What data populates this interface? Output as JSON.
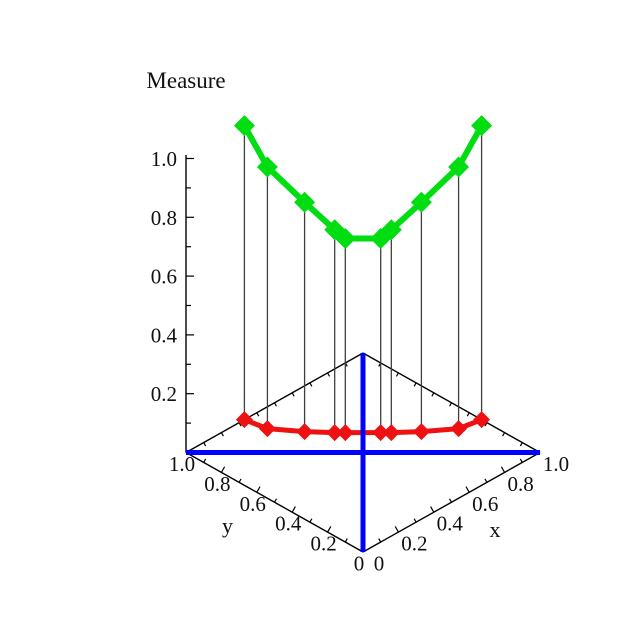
{
  "chart_data": {
    "type": "line3d",
    "zlabel": "Measure",
    "axes": {
      "x": {
        "label": "x",
        "range": [
          0,
          1
        ],
        "tick_values": [
          0,
          0.2,
          0.4,
          0.6,
          0.8,
          1.0
        ],
        "tick_labels": [
          "0",
          "0.2",
          "0.4",
          "0.6",
          "0.8",
          "1.0"
        ]
      },
      "y": {
        "label": "y",
        "range": [
          0,
          1
        ],
        "tick_values": [
          0,
          0.2,
          0.4,
          0.6,
          0.8,
          1.0
        ],
        "tick_labels": [
          "0",
          "0.2",
          "0.4",
          "0.6",
          "0.8",
          "1.0"
        ]
      },
      "z": {
        "label": "Measure",
        "range": [
          0,
          1
        ],
        "tick_values": [
          0.2,
          0.4,
          0.6,
          0.8,
          1.0
        ],
        "tick_labels": [
          "0.2",
          "0.4",
          "0.6",
          "0.8",
          "1.0"
        ]
      },
      "minor_tick_step": 0.1
    },
    "grid": false,
    "legend": null,
    "points": [
      {
        "x": 0.33,
        "y": 1.0,
        "measure": 1.0
      },
      {
        "x": 0.35,
        "y": 0.89,
        "measure": 0.89
      },
      {
        "x": 0.44,
        "y": 0.77,
        "measure": 0.78
      },
      {
        "x": 0.52,
        "y": 0.68,
        "measure": 0.69
      },
      {
        "x": 0.55,
        "y": 0.65,
        "measure": 0.66
      },
      {
        "x": 0.65,
        "y": 0.55,
        "measure": 0.66
      },
      {
        "x": 0.68,
        "y": 0.52,
        "measure": 0.69
      },
      {
        "x": 0.77,
        "y": 0.44,
        "measure": 0.78
      },
      {
        "x": 0.89,
        "y": 0.35,
        "measure": 0.89
      },
      {
        "x": 1.0,
        "y": 0.33,
        "measure": 1.0
      }
    ],
    "measure_curve": {
      "name": "measure-curve",
      "color": "#00DD11",
      "marker": "diamond"
    },
    "projection_curve": {
      "name": "projection-curve",
      "color": "#EE1111",
      "marker": "diamond",
      "z": 0
    },
    "drop_lines": {
      "show": true,
      "color": "#3F3F3F"
    },
    "base_diagonal_axes": {
      "show": true,
      "color": "#0000FF"
    },
    "axis_color": "#000000",
    "background": "#FFFFFF"
  }
}
